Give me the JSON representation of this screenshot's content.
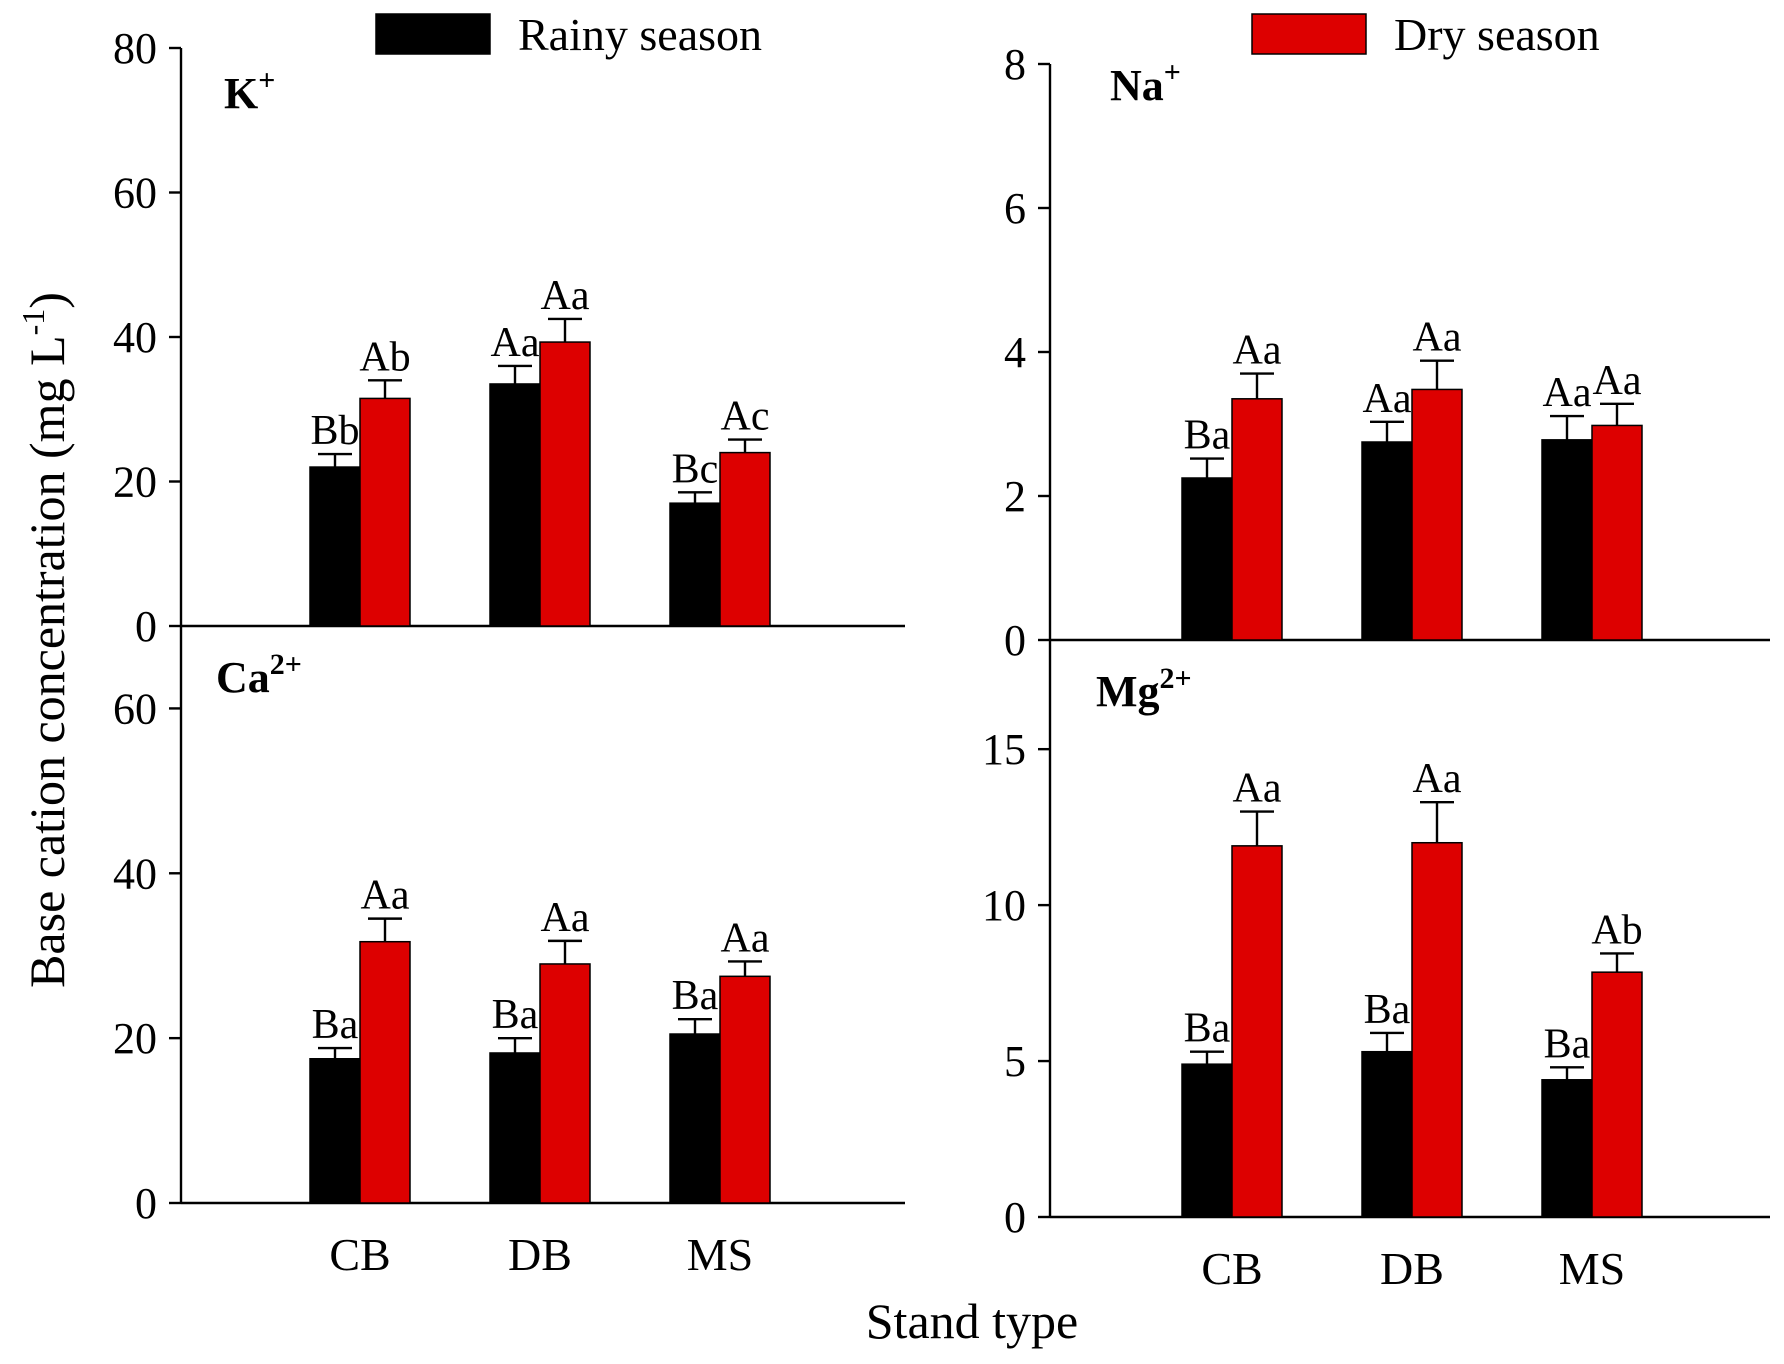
{
  "colors": {
    "rainy": "#000000",
    "dry": "#dd0000"
  },
  "legend": {
    "rainy_label": "Rainy season",
    "dry_label": "Dry season"
  },
  "y_title": "Base cation concentration (mg L",
  "y_title_sup": "-1",
  "y_title_close": ")",
  "x_title": "Stand type",
  "chart_data": [
    {
      "type": "bar",
      "ion": "K",
      "ion_sup": "+",
      "categories": [
        "CB",
        "DB",
        "MS"
      ],
      "series": [
        {
          "name": "Rainy season",
          "values": [
            22,
            33.5,
            17
          ],
          "errors": [
            1.8,
            2.5,
            1.5
          ],
          "labels": [
            "Bb",
            "Aa",
            "Bc"
          ]
        },
        {
          "name": "Dry season",
          "values": [
            31.5,
            39.3,
            24
          ],
          "errors": [
            2.5,
            3.2,
            1.8
          ],
          "labels": [
            "Ab",
            "Aa",
            "Ac"
          ]
        }
      ],
      "ylim": [
        0,
        80
      ],
      "yticks": [
        0,
        20,
        40,
        60,
        80
      ]
    },
    {
      "type": "bar",
      "ion": "Na",
      "ion_sup": "+",
      "categories": [
        "CB",
        "DB",
        "MS"
      ],
      "series": [
        {
          "name": "Rainy season",
          "values": [
            2.25,
            2.75,
            2.78
          ],
          "errors": [
            0.27,
            0.28,
            0.33
          ],
          "labels": [
            "Ba",
            "Aa",
            "Aa"
          ]
        },
        {
          "name": "Dry season",
          "values": [
            3.35,
            3.48,
            2.98
          ],
          "errors": [
            0.35,
            0.4,
            0.3
          ],
          "labels": [
            "Aa",
            "Aa",
            "Aa"
          ]
        }
      ],
      "ylim": [
        0,
        8
      ],
      "yticks": [
        0,
        2,
        4,
        6,
        8
      ]
    },
    {
      "type": "bar",
      "ion": "Ca",
      "ion_sup": "2+",
      "categories": [
        "CB",
        "DB",
        "MS"
      ],
      "series": [
        {
          "name": "Rainy season",
          "values": [
            17.5,
            18.2,
            20.5
          ],
          "errors": [
            1.3,
            1.8,
            1.8
          ],
          "labels": [
            "Ba",
            "Ba",
            "Ba"
          ]
        },
        {
          "name": "Dry season",
          "values": [
            31.7,
            29,
            27.5
          ],
          "errors": [
            2.8,
            2.8,
            1.8
          ],
          "labels": [
            "Aa",
            "Aa",
            "Aa"
          ]
        }
      ],
      "ylim": [
        0,
        70
      ],
      "yticks": [
        0,
        20,
        40,
        60
      ]
    },
    {
      "type": "bar",
      "ion": "Mg",
      "ion_sup": "2+",
      "categories": [
        "CB",
        "DB",
        "MS"
      ],
      "series": [
        {
          "name": "Rainy season",
          "values": [
            4.9,
            5.3,
            4.4
          ],
          "errors": [
            0.4,
            0.6,
            0.4
          ],
          "labels": [
            "Ba",
            "Ba",
            "Ba"
          ]
        },
        {
          "name": "Dry season",
          "values": [
            11.9,
            12,
            7.85
          ],
          "errors": [
            1.1,
            1.3,
            0.6
          ],
          "labels": [
            "Aa",
            "Aa",
            "Ab"
          ]
        }
      ],
      "ylim": [
        0,
        18.5
      ],
      "yticks": [
        0,
        5,
        10,
        15
      ]
    }
  ]
}
